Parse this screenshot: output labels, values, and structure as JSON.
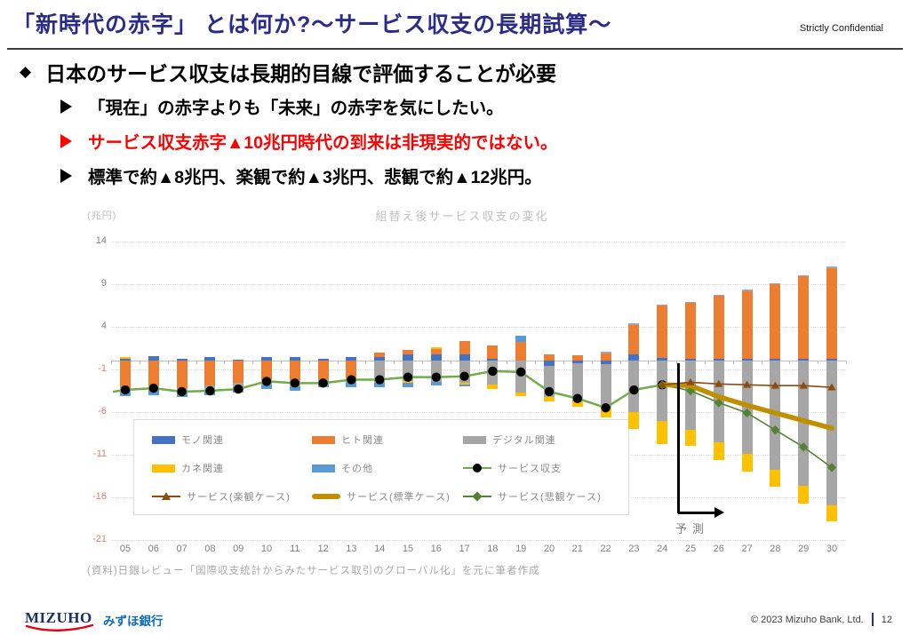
{
  "header": {
    "title": "「新時代の赤字」 とは何か?〜サービス収支の長期試算〜",
    "confidential": "Strictly Confidential"
  },
  "bullets": {
    "heading": "日本のサービス収支は長期的目線で評価することが必要",
    "diamond": "◆",
    "items": [
      {
        "text": "「現在」の赤字よりも「未来」の赤字を気にしたい。",
        "color": "#000000"
      },
      {
        "text": "サービス収支赤字▲10兆円時代の到来は非現実的ではない。",
        "color": "#FF0000"
      },
      {
        "text": "標準で約▲8兆円、楽観で約▲3兆円、悲観で約▲12兆円。",
        "color": "#000000"
      }
    ]
  },
  "chart_data": {
    "type": "bar",
    "subtype": "stacked-bar-with-lines",
    "title": "組替え後サービス収支の変化",
    "unit_label": "(兆円)",
    "ylim": [
      -21,
      14
    ],
    "yticks": [
      14,
      9,
      4,
      -1,
      -6,
      -11,
      -16,
      -21
    ],
    "axis_colors": {
      "positive_tick": "#7F7F7F",
      "negative_tick": "#DF7B6B"
    },
    "grid": true,
    "legend_position": "bottom-left-box",
    "categories": [
      "05",
      "06",
      "07",
      "08",
      "09",
      "10",
      "11",
      "12",
      "13",
      "14",
      "15",
      "16",
      "17",
      "18",
      "19",
      "20",
      "21",
      "22",
      "23",
      "24",
      "25",
      "26",
      "27",
      "28",
      "29",
      "30"
    ],
    "colors": {
      "blue": "#4472C4",
      "orange": "#ED7D31",
      "gray": "#A6A6A6",
      "yellow": "#FFC000",
      "lightblue": "#5B9BD5"
    },
    "bars": [
      {
        "y": "05",
        "pos": [
          [
            "blue",
            0.3
          ],
          [
            "yellow",
            0.15
          ]
        ],
        "neg": [
          [
            "orange",
            3.2
          ],
          [
            "gray",
            0.3
          ],
          [
            "lightblue",
            0.6
          ]
        ]
      },
      {
        "y": "06",
        "pos": [
          [
            "blue",
            0.6
          ]
        ],
        "neg": [
          [
            "orange",
            3.0
          ],
          [
            "gray",
            0.4
          ],
          [
            "lightblue",
            0.6
          ]
        ]
      },
      {
        "y": "07",
        "pos": [
          [
            "blue",
            0.3
          ]
        ],
        "neg": [
          [
            "orange",
            3.2
          ],
          [
            "gray",
            0.4
          ],
          [
            "lightblue",
            0.6
          ]
        ]
      },
      {
        "y": "08",
        "pos": [
          [
            "blue",
            0.5
          ]
        ],
        "neg": [
          [
            "orange",
            2.9
          ],
          [
            "gray",
            0.5
          ],
          [
            "lightblue",
            0.6
          ]
        ]
      },
      {
        "y": "09",
        "pos": [
          [
            "blue",
            0.15
          ]
        ],
        "neg": [
          [
            "orange",
            2.6
          ],
          [
            "gray",
            0.5
          ],
          [
            "lightblue",
            0.6
          ]
        ]
      },
      {
        "y": "10",
        "pos": [
          [
            "blue",
            0.5
          ]
        ],
        "neg": [
          [
            "orange",
            2.2
          ],
          [
            "gray",
            0.6
          ],
          [
            "lightblue",
            0.5
          ]
        ]
      },
      {
        "y": "11",
        "pos": [
          [
            "blue",
            0.5
          ]
        ],
        "neg": [
          [
            "orange",
            2.3
          ],
          [
            "gray",
            0.7
          ],
          [
            "lightblue",
            0.5
          ]
        ]
      },
      {
        "y": "12",
        "pos": [
          [
            "blue",
            0.3
          ]
        ],
        "neg": [
          [
            "orange",
            2.1
          ],
          [
            "gray",
            0.5
          ],
          [
            "lightblue",
            0.5
          ]
        ]
      },
      {
        "y": "13",
        "pos": [
          [
            "blue",
            0.5
          ]
        ],
        "neg": [
          [
            "orange",
            2.0
          ],
          [
            "gray",
            0.6
          ],
          [
            "lightblue",
            0.5
          ]
        ]
      },
      {
        "y": "14",
        "pos": [
          [
            "blue",
            0.5
          ],
          [
            "orange",
            0.5
          ]
        ],
        "neg": [
          [
            "gray",
            2.6
          ],
          [
            "lightblue",
            0.5
          ]
        ]
      },
      {
        "y": "15",
        "pos": [
          [
            "blue",
            0.8
          ],
          [
            "orange",
            0.5
          ]
        ],
        "neg": [
          [
            "gray",
            2.4
          ],
          [
            "yellow",
            0.2
          ],
          [
            "lightblue",
            0.5
          ]
        ]
      },
      {
        "y": "16",
        "pos": [
          [
            "blue",
            0.8
          ],
          [
            "orange",
            0.6
          ],
          [
            "yellow",
            0.2
          ]
        ],
        "neg": [
          [
            "gray",
            2.5
          ],
          [
            "lightblue",
            0.4
          ]
        ]
      },
      {
        "y": "17",
        "pos": [
          [
            "blue",
            0.8
          ],
          [
            "orange",
            1.5
          ]
        ],
        "neg": [
          [
            "gray",
            2.6
          ],
          [
            "yellow",
            0.2
          ],
          [
            "lightblue",
            0.2
          ]
        ]
      },
      {
        "y": "18",
        "pos": [
          [
            "blue",
            0.3
          ],
          [
            "orange",
            1.5
          ]
        ],
        "neg": [
          [
            "gray",
            2.8
          ],
          [
            "yellow",
            0.5
          ]
        ]
      },
      {
        "y": "19",
        "pos": [
          [
            "orange",
            2.2
          ],
          [
            "lightblue",
            0.8
          ]
        ],
        "neg": [
          [
            "gray",
            3.7
          ],
          [
            "yellow",
            0.4
          ]
        ]
      },
      {
        "y": "20",
        "pos": [
          [
            "orange",
            0.8
          ]
        ],
        "neg": [
          [
            "blue",
            0.6
          ],
          [
            "gray",
            3.6
          ],
          [
            "yellow",
            0.5
          ]
        ]
      },
      {
        "y": "21",
        "pos": [
          [
            "orange",
            0.7
          ]
        ],
        "neg": [
          [
            "blue",
            0.3
          ],
          [
            "gray",
            4.4
          ],
          [
            "yellow",
            0.7
          ]
        ]
      },
      {
        "y": "22",
        "pos": [
          [
            "orange",
            0.9
          ],
          [
            "gray",
            0.15
          ]
        ],
        "neg": [
          [
            "blue",
            0.4
          ],
          [
            "gray",
            5.1
          ],
          [
            "yellow",
            1.1
          ]
        ]
      },
      {
        "y": "23",
        "pos": [
          [
            "blue",
            0.75
          ],
          [
            "orange",
            3.5
          ],
          [
            "gray",
            0.15
          ]
        ],
        "neg": [
          [
            "gray",
            6.0
          ],
          [
            "yellow",
            2.0
          ]
        ]
      },
      {
        "y": "24",
        "pos": [
          [
            "blue",
            0.4
          ],
          [
            "orange",
            6.1
          ],
          [
            "gray",
            0.15
          ]
        ],
        "neg": [
          [
            "gray",
            7.0
          ],
          [
            "yellow",
            2.7
          ]
        ]
      },
      {
        "y": "25",
        "pos": [
          [
            "blue",
            0.2
          ],
          [
            "orange",
            6.6
          ],
          [
            "gray",
            0.15
          ]
        ],
        "neg": [
          [
            "gray",
            8.1
          ],
          [
            "yellow",
            1.9
          ]
        ]
      },
      {
        "y": "26",
        "pos": [
          [
            "blue",
            0.2
          ],
          [
            "orange",
            7.4
          ],
          [
            "gray",
            0.15
          ]
        ],
        "neg": [
          [
            "gray",
            9.5
          ],
          [
            "yellow",
            2.1
          ]
        ]
      },
      {
        "y": "27",
        "pos": [
          [
            "blue",
            0.2
          ],
          [
            "orange",
            8.0
          ],
          [
            "gray",
            0.15
          ]
        ],
        "neg": [
          [
            "gray",
            10.9
          ],
          [
            "yellow",
            2.1
          ]
        ]
      },
      {
        "y": "28",
        "pos": [
          [
            "blue",
            0.2
          ],
          [
            "orange",
            8.8
          ],
          [
            "gray",
            0.15
          ]
        ],
        "neg": [
          [
            "gray",
            12.8
          ],
          [
            "yellow",
            2.0
          ]
        ]
      },
      {
        "y": "29",
        "pos": [
          [
            "blue",
            0.2
          ],
          [
            "orange",
            9.7
          ],
          [
            "gray",
            0.15
          ]
        ],
        "neg": [
          [
            "gray",
            14.6
          ],
          [
            "yellow",
            2.1
          ]
        ]
      },
      {
        "y": "30",
        "pos": [
          [
            "blue",
            0.2
          ],
          [
            "orange",
            10.7
          ],
          [
            "gray",
            0.15
          ]
        ],
        "neg": [
          [
            "gray",
            16.9
          ],
          [
            "yellow",
            1.9
          ]
        ]
      }
    ],
    "lines": [
      {
        "id": "service",
        "label": "サービス収支",
        "color": "#6FAE46",
        "width": 2.5,
        "marker": "circle",
        "marker_color": "#000000",
        "start_year": "05",
        "values": [
          -3.4,
          -3.2,
          -3.6,
          -3.5,
          -3.3,
          -2.4,
          -2.6,
          -2.6,
          -2.2,
          -2.2,
          -1.9,
          -1.9,
          -1.8,
          -1.2,
          -1.3,
          -3.6,
          -4.4,
          -5.5,
          -3.4,
          -2.8
        ]
      },
      {
        "id": "pessimistic",
        "label": "サービス(悲観ケース)",
        "color": "#548235",
        "width": 1.6,
        "marker": "diamond",
        "marker_color": "#548235",
        "start_year": "24",
        "values": [
          -2.8,
          -3.5,
          -4.9,
          -6.1,
          -8.1,
          -10.1,
          -12.5
        ]
      },
      {
        "id": "standard",
        "label": "サービス(標準ケース)",
        "color": "#BF8F00",
        "width": 5.5,
        "marker": "none",
        "marker_color": "#BF8F00",
        "start_year": "24",
        "values": [
          -2.8,
          -2.9,
          -4.2,
          -5.2,
          -6.1,
          -7.0,
          -7.9
        ]
      },
      {
        "id": "optimistic",
        "label": "サービス(楽観ケース)",
        "color": "#8E4B10",
        "width": 1.6,
        "marker": "triangle",
        "marker_color": "#8E4B10",
        "start_year": "24",
        "values": [
          -2.8,
          -2.5,
          -2.7,
          -2.8,
          -2.9,
          -2.9,
          -3.1
        ]
      }
    ],
    "legend": [
      {
        "label": "モノ関連",
        "swatch": "bar",
        "color": "#4472C4"
      },
      {
        "label": "ヒト関連",
        "swatch": "bar",
        "color": "#ED7D31"
      },
      {
        "label": "デジタル関連",
        "swatch": "bar",
        "color": "#A6A6A6"
      },
      {
        "label": "カネ関連",
        "swatch": "bar",
        "color": "#FFC000"
      },
      {
        "label": "その他",
        "swatch": "bar",
        "color": "#5B9BD5"
      },
      {
        "label": "サービス収支",
        "swatch": "line-circle",
        "color": "#6FAE46",
        "marker_color": "#000000"
      },
      {
        "label": "サービス(楽観ケース)",
        "swatch": "line-triangle",
        "color": "#8E4B10",
        "marker_color": "#8E4B10"
      },
      {
        "label": "サービス(標準ケース)",
        "swatch": "line-thick",
        "color": "#BF8F00",
        "marker_color": "#BF8F00"
      },
      {
        "label": "サービス(悲観ケース)",
        "swatch": "line-diamond",
        "color": "#548235",
        "marker_color": "#548235"
      }
    ],
    "forecast_label": "予測",
    "source": "(資料)日銀レビュー「国際収支統計からみたサービス取引のグローバル化」を元に筆者作成"
  },
  "footer": {
    "logo_text": "MIZUHO",
    "logo_jp": "みずほ銀行",
    "copyright": "© 2023 Mizuho Bank, Ltd.",
    "page": "12"
  }
}
